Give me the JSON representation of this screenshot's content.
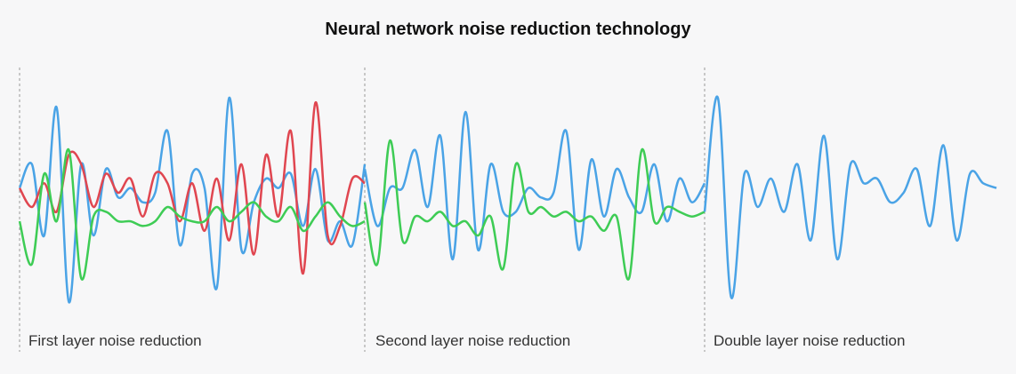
{
  "chart_data": {
    "type": "line",
    "title": "Neural network noise reduction technology",
    "xlabel": "",
    "ylabel": "",
    "grid": false,
    "legend": "none",
    "segment_labels": [
      "First layer noise reduction",
      "Second layer noise reduction",
      "Double layer noise reduction"
    ],
    "panels": [
      {
        "label": "First layer noise reduction",
        "series": [
          {
            "color": "#4aa3e6",
            "values": [
              0.1,
              0.6,
              -0.9,
              1.8,
              -2.3,
              0.6,
              -0.9,
              0.5,
              -0.1,
              0.1,
              -0.2,
              0.0,
              1.3,
              -1.1,
              0.4,
              0.1,
              -2.0,
              2.0,
              -1.2,
              -0.2,
              0.3,
              0.1,
              0.4,
              -0.7,
              0.5,
              -1.0,
              -0.6,
              -1.1,
              0.6
            ]
          },
          {
            "color": "#e04650",
            "values": [
              0.1,
              -0.3,
              0.2,
              -0.4,
              0.8,
              0.6,
              -0.3,
              0.4,
              0.0,
              0.3,
              -0.5,
              0.4,
              0.2,
              -0.6,
              0.2,
              -0.8,
              0.3,
              -1.0,
              0.6,
              -1.3,
              0.8,
              -0.5,
              1.3,
              -1.7,
              1.9,
              -0.9,
              -0.7,
              0.3,
              0.2
            ]
          },
          {
            "color": "#3ecc55",
            "values": [
              -0.6,
              -1.5,
              0.4,
              -0.6,
              0.9,
              -1.8,
              -0.5,
              -0.4,
              -0.6,
              -0.6,
              -0.7,
              -0.6,
              -0.3,
              -0.5,
              -0.6,
              -0.6,
              -0.3,
              -0.6,
              -0.4,
              -0.2,
              -0.5,
              -0.6,
              -0.3,
              -0.8,
              -0.5,
              -0.2,
              -0.5,
              -0.7,
              -0.6
            ]
          }
        ]
      },
      {
        "label": "Second layer noise reduction",
        "series": [
          {
            "color": "#4aa3e6",
            "values": [
              0.5,
              -0.7,
              0.1,
              0.1,
              0.9,
              -0.3,
              1.2,
              -1.4,
              1.7,
              -1.2,
              0.6,
              -0.4,
              -0.4,
              0.1,
              -0.1,
              0.0,
              1.3,
              -1.2,
              0.7,
              -0.5,
              0.5,
              -0.1,
              -0.4,
              0.6,
              -0.6,
              0.3,
              -0.2,
              0.2
            ]
          },
          {
            "color": "#3ecc55",
            "values": [
              -0.2,
              -1.5,
              1.1,
              -1.0,
              -0.5,
              -0.6,
              -0.4,
              -0.7,
              -0.6,
              -0.9,
              -0.5,
              -1.6,
              0.6,
              -0.4,
              -0.3,
              -0.5,
              -0.4,
              -0.6,
              -0.5,
              -0.8,
              -0.5,
              -1.8,
              0.9,
              -0.6,
              -0.3,
              -0.4,
              -0.5,
              -0.4
            ]
          }
        ]
      },
      {
        "label": "Double layer noise reduction",
        "series": [
          {
            "color": "#4aa3e6",
            "values": [
              -0.4,
              2.0,
              -2.2,
              0.4,
              -0.3,
              0.3,
              -0.4,
              0.6,
              -1.0,
              1.2,
              -1.4,
              0.6,
              0.2,
              0.3,
              -0.2,
              0.0,
              0.5,
              -0.7,
              1.0,
              -1.0,
              0.4,
              0.2,
              0.1
            ]
          }
        ]
      }
    ],
    "ylim": [
      -2.6,
      2.6
    ]
  }
}
